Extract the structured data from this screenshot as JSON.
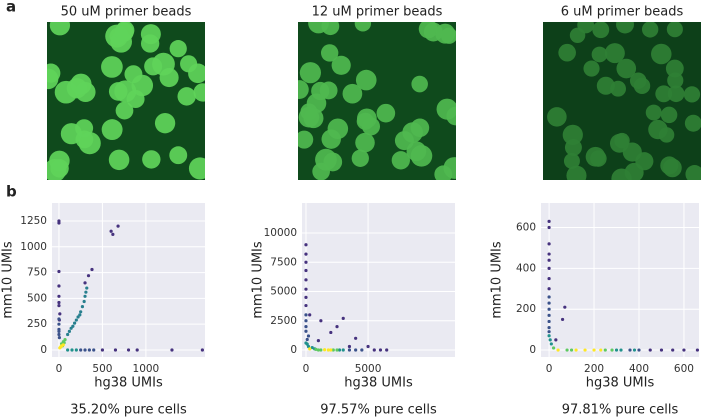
{
  "figure": {
    "panel_labels": [
      "a",
      "b"
    ],
    "image_titles": [
      "50 uM primer beads",
      "12 uM primer beads",
      "6 uM primer beads"
    ]
  },
  "chart_data": [
    {
      "type": "scatter",
      "x_label": "hg38 UMIs",
      "y_label": "mm10 UMIs",
      "annotation": "35.20% pure cells",
      "xlim": [
        -80,
        1680
      ],
      "ylim": [
        -68,
        1424
      ],
      "xticks": [
        0,
        500,
        1000
      ],
      "yticks": [
        0,
        250,
        500,
        750,
        1000,
        1250
      ],
      "grid": true,
      "series": [
        {
          "color": "#46327e",
          "x": [
            0,
            0,
            600,
            620,
            680,
            0,
            0,
            0,
            0,
            0,
            380,
            340,
            300,
            1300,
            1650,
            800,
            900,
            500,
            650,
            10,
            5
          ],
          "values": [
            1250,
            1230,
            1150,
            1120,
            1200,
            760,
            620,
            520,
            460,
            430,
            780,
            720,
            650,
            0,
            0,
            0,
            0,
            0,
            0,
            350,
            290
          ]
        },
        {
          "color": "#3b528b",
          "x": [
            0,
            0,
            0,
            0,
            0,
            5,
            250,
            300,
            350,
            400
          ],
          "values": [
            300,
            250,
            200,
            180,
            150,
            120,
            0,
            0,
            0,
            0
          ]
        },
        {
          "color": "#277f8e",
          "x": [
            100,
            140,
            180,
            220,
            250,
            270,
            290,
            300,
            200,
            160,
            120,
            240,
            310,
            320
          ],
          "values": [
            150,
            210,
            260,
            320,
            370,
            420,
            470,
            520,
            290,
            230,
            180,
            340,
            560,
            600
          ]
        },
        {
          "color": "#21918c",
          "x": [
            100,
            150,
            200
          ],
          "values": [
            0,
            0,
            0
          ]
        },
        {
          "color": "#5ec962",
          "x": [
            30,
            50,
            70,
            40,
            60
          ],
          "values": [
            60,
            80,
            100,
            40,
            70
          ]
        },
        {
          "color": "#fde725",
          "x": [
            20,
            10,
            30,
            50
          ],
          "values": [
            30,
            20,
            40,
            50
          ]
        }
      ]
    },
    {
      "type": "scatter",
      "x_label": "hg38 UMIs",
      "y_label": "mm10 UMIs",
      "annotation": "97.57% pure cells",
      "xlim": [
        -320,
        12000
      ],
      "ylim": [
        -600,
        12570
      ],
      "xticks": [
        0,
        5000
      ],
      "yticks": [
        0,
        2500,
        5000,
        7500,
        10000
      ],
      "grid": true,
      "series": [
        {
          "color": "#46327e",
          "x": [
            0,
            0,
            0,
            0,
            0,
            0,
            0,
            0,
            300,
            3000,
            1200,
            2500,
            2000,
            4000,
            5000,
            6500,
            6000,
            5500,
            1000,
            3500
          ],
          "values": [
            9000,
            8200,
            7500,
            6800,
            6000,
            5200,
            4500,
            3800,
            3000,
            2700,
            2500,
            2000,
            1500,
            1000,
            300,
            0,
            0,
            0,
            800,
            300
          ]
        },
        {
          "color": "#3b528b",
          "x": [
            0,
            0,
            0,
            0,
            200,
            100,
            4500,
            4000,
            3500
          ],
          "values": [
            3000,
            2500,
            2000,
            1600,
            1200,
            900,
            0,
            0,
            0
          ]
        },
        {
          "color": "#21918c",
          "x": [
            0,
            100,
            200,
            500,
            700,
            3000,
            2700
          ],
          "values": [
            600,
            500,
            300,
            200,
            100,
            0,
            0
          ]
        },
        {
          "color": "#5ec962",
          "x": [
            800,
            1000,
            1200,
            2200,
            2500
          ],
          "values": [
            50,
            0,
            0,
            0,
            0
          ]
        },
        {
          "color": "#fde725",
          "x": [
            1500,
            1800,
            2000,
            300
          ],
          "values": [
            20,
            0,
            0,
            100
          ]
        }
      ]
    },
    {
      "type": "scatter",
      "x_label": "hg38 UMIs",
      "y_label": "mm10 UMIs",
      "annotation": "97.81% pure cells",
      "xlim": [
        -36,
        667
      ],
      "ylim": [
        -34,
        720
      ],
      "xticks": [
        0,
        200,
        400,
        600
      ],
      "yticks": [
        0,
        200,
        400,
        600
      ],
      "grid": true,
      "series": [
        {
          "color": "#46327e",
          "x": [
            0,
            0,
            0,
            0,
            0,
            0,
            0,
            0,
            70,
            60,
            30,
            500,
            550,
            600,
            660,
            450
          ],
          "values": [
            630,
            600,
            520,
            470,
            440,
            400,
            350,
            300,
            210,
            150,
            50,
            0,
            0,
            0,
            0,
            0
          ]
        },
        {
          "color": "#3b528b",
          "x": [
            0,
            0,
            0,
            0,
            0,
            0,
            0,
            400,
            360
          ],
          "values": [
            260,
            230,
            200,
            170,
            140,
            110,
            90,
            0,
            0
          ]
        },
        {
          "color": "#21918c",
          "x": [
            0,
            5,
            10,
            300,
            320,
            380
          ],
          "values": [
            70,
            50,
            30,
            0,
            0,
            0
          ]
        },
        {
          "color": "#5ec962",
          "x": [
            20,
            80,
            100,
            250,
            280
          ],
          "values": [
            10,
            0,
            0,
            0,
            0
          ]
        },
        {
          "color": "#fde725",
          "x": [
            40,
            120,
            160,
            200,
            230
          ],
          "values": [
            0,
            0,
            0,
            0,
            0
          ]
        }
      ]
    }
  ]
}
